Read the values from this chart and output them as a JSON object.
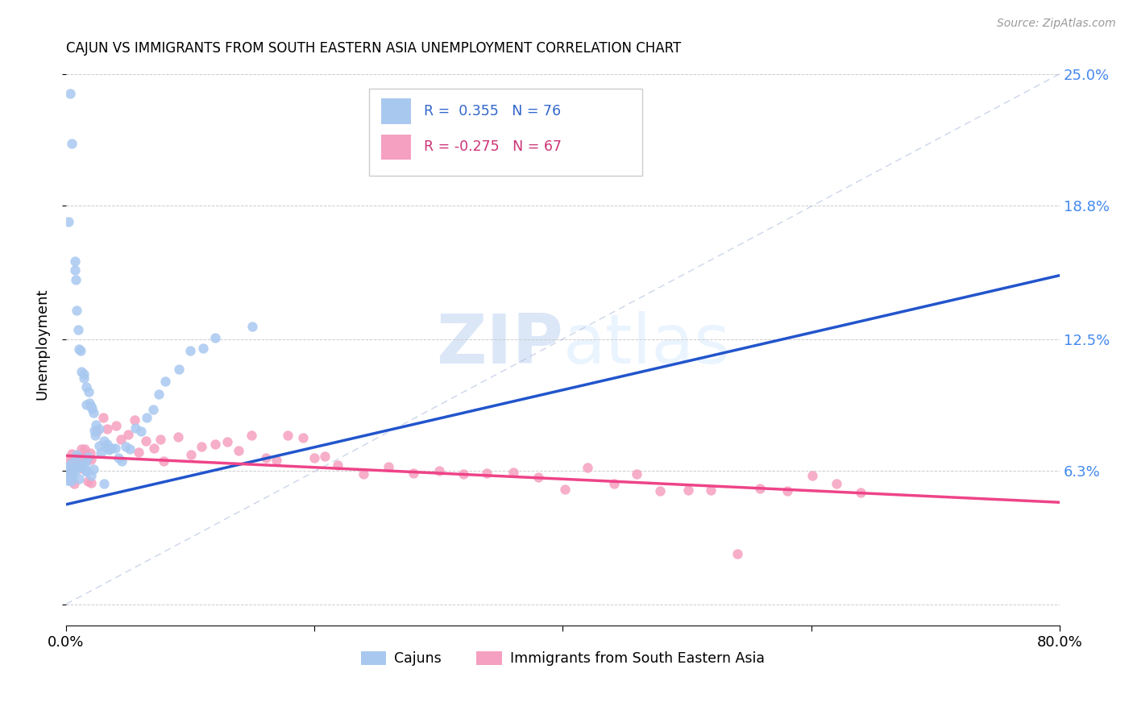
{
  "title": "CAJUN VS IMMIGRANTS FROM SOUTH EASTERN ASIA UNEMPLOYMENT CORRELATION CHART",
  "source": "Source: ZipAtlas.com",
  "ylabel": "Unemployment",
  "xlim": [
    0.0,
    0.8
  ],
  "ylim": [
    -0.01,
    0.255
  ],
  "ytick_positions": [
    0.0,
    0.063,
    0.125,
    0.188,
    0.25
  ],
  "ytick_labels": [
    "",
    "6.3%",
    "12.5%",
    "18.8%",
    "25.0%"
  ],
  "blue_color": "#A8C8F0",
  "pink_color": "#F5A0C0",
  "blue_line_color": "#2255CC",
  "pink_line_color": "#EE4488",
  "diag_color": "#AABBDD",
  "legend_label1": "Cajuns",
  "legend_label2": "Immigrants from South Eastern Asia",
  "watermark": "ZIPatlas",
  "blue_line_x": [
    0.0,
    0.8
  ],
  "blue_line_y": [
    0.047,
    0.155
  ],
  "pink_line_x": [
    0.0,
    0.8
  ],
  "pink_line_y": [
    0.07,
    0.048
  ]
}
